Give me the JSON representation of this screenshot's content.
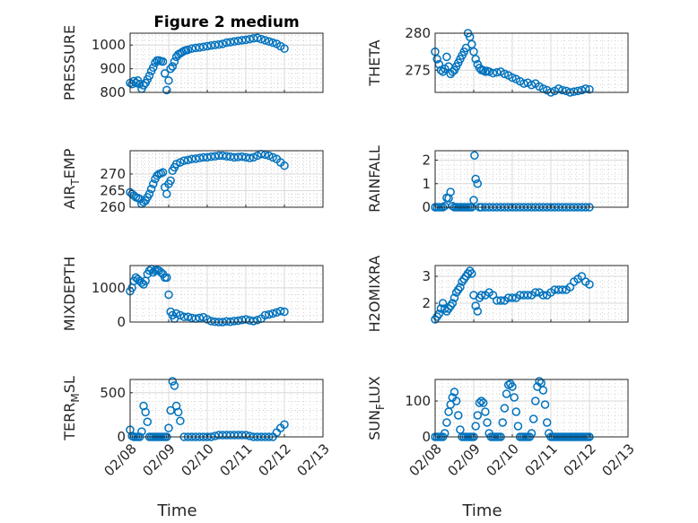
{
  "chart_data": [
    {
      "type": "scatter",
      "title": "Figure 2 medium",
      "ylabel": "PRESSURE",
      "xlim": [
        "02/08",
        "02/13"
      ],
      "ylim": [
        800,
        1050
      ],
      "yticks": [
        800,
        900,
        1000
      ],
      "ytick_labels": [
        "800",
        "900",
        "1000"
      ],
      "xtick_labels": [
        "02/08",
        "02/09",
        "02/10",
        "02/11",
        "02/12",
        "02/13"
      ],
      "x": [
        0,
        0.05,
        0.1,
        0.15,
        0.2,
        0.25,
        0.3,
        0.35,
        0.4,
        0.45,
        0.5,
        0.55,
        0.6,
        0.65,
        0.7,
        0.75,
        0.8,
        0.85,
        0.9,
        0.95,
        1.0,
        1.05,
        1.1,
        1.15,
        1.2,
        1.25,
        1.3,
        1.35,
        1.4,
        1.45,
        1.5,
        1.6,
        1.7,
        1.8,
        1.9,
        2.0,
        2.1,
        2.2,
        2.3,
        2.4,
        2.5,
        2.6,
        2.7,
        2.8,
        2.9,
        3.0,
        3.1,
        3.2,
        3.3,
        3.4,
        3.5,
        3.6,
        3.7,
        3.8,
        3.9,
        4.0
      ],
      "values": [
        840,
        835,
        848,
        840,
        850,
        835,
        815,
        830,
        840,
        855,
        870,
        890,
        905,
        925,
        935,
        935,
        932,
        930,
        880,
        810,
        850,
        900,
        910,
        930,
        950,
        960,
        965,
        970,
        975,
        978,
        980,
        985,
        988,
        990,
        992,
        995,
        998,
        1000,
        1002,
        1005,
        1010,
        1012,
        1015,
        1018,
        1020,
        1022,
        1025,
        1028,
        1030,
        1025,
        1020,
        1015,
        1010,
        1005,
        995,
        985
      ]
    },
    {
      "type": "scatter",
      "ylabel": "THETA",
      "xlim": [
        "02/08",
        "02/13"
      ],
      "ylim": [
        272,
        280
      ],
      "yticks": [
        275,
        280
      ],
      "ytick_labels": [
        "275",
        "280"
      ],
      "xtick_labels": [
        "02/08",
        "02/09",
        "02/10",
        "02/11",
        "02/12",
        "02/13"
      ],
      "x": [
        0,
        0.05,
        0.1,
        0.15,
        0.2,
        0.25,
        0.3,
        0.35,
        0.4,
        0.45,
        0.5,
        0.55,
        0.6,
        0.65,
        0.7,
        0.75,
        0.8,
        0.85,
        0.9,
        0.95,
        1.0,
        1.05,
        1.1,
        1.15,
        1.2,
        1.25,
        1.3,
        1.35,
        1.4,
        1.5,
        1.6,
        1.7,
        1.8,
        1.9,
        2.0,
        2.1,
        2.2,
        2.3,
        2.4,
        2.5,
        2.6,
        2.7,
        2.8,
        2.9,
        3.0,
        3.1,
        3.2,
        3.3,
        3.4,
        3.5,
        3.6,
        3.7,
        3.8,
        3.9,
        4.0
      ],
      "values": [
        277.5,
        276.5,
        275.8,
        275.0,
        274.8,
        275.2,
        276.8,
        275.5,
        274.5,
        274.8,
        275.0,
        275.5,
        276.0,
        276.5,
        277.0,
        277.5,
        278.0,
        280.0,
        279.5,
        278.5,
        277.5,
        276.5,
        275.8,
        275.3,
        275.0,
        275.0,
        274.8,
        274.9,
        274.8,
        274.6,
        274.7,
        274.8,
        274.5,
        274.3,
        274.0,
        273.8,
        273.5,
        273.2,
        273.3,
        273.0,
        273.2,
        272.8,
        272.5,
        272.3,
        272.0,
        272.2,
        272.5,
        272.3,
        272.2,
        272.0,
        272.1,
        272.2,
        272.3,
        272.5,
        272.4
      ]
    },
    {
      "type": "scatter",
      "ylabel": "AIR_TEMP",
      "xlim": [
        "02/08",
        "02/13"
      ],
      "ylim": [
        260,
        277
      ],
      "yticks": [
        260,
        265,
        270
      ],
      "ytick_labels": [
        "260",
        "265",
        "270"
      ],
      "xtick_labels": [
        "02/08",
        "02/09",
        "02/10",
        "02/11",
        "02/12",
        "02/13"
      ],
      "x": [
        0,
        0.05,
        0.1,
        0.15,
        0.2,
        0.25,
        0.3,
        0.35,
        0.4,
        0.45,
        0.5,
        0.55,
        0.6,
        0.65,
        0.7,
        0.75,
        0.8,
        0.85,
        0.9,
        0.95,
        1.0,
        1.05,
        1.1,
        1.15,
        1.2,
        1.3,
        1.4,
        1.5,
        1.6,
        1.7,
        1.8,
        1.9,
        2.0,
        2.1,
        2.2,
        2.3,
        2.4,
        2.5,
        2.6,
        2.7,
        2.8,
        2.9,
        3.0,
        3.1,
        3.2,
        3.3,
        3.4,
        3.5,
        3.6,
        3.7,
        3.8,
        3.9,
        4.0
      ],
      "values": [
        264.5,
        264.0,
        263.5,
        263.0,
        262.8,
        262.5,
        261.0,
        261.5,
        262.0,
        263.0,
        264.0,
        265.5,
        267.0,
        268.5,
        269.5,
        270.0,
        270.2,
        270.5,
        266.0,
        264.0,
        267.0,
        268.0,
        271.0,
        272.0,
        273.0,
        273.5,
        274.0,
        274.2,
        274.5,
        274.6,
        274.8,
        275.0,
        275.0,
        275.2,
        275.3,
        275.5,
        275.5,
        275.3,
        275.2,
        275.0,
        275.1,
        275.2,
        275.0,
        274.8,
        275.0,
        275.5,
        276.0,
        275.8,
        275.5,
        275.0,
        274.5,
        273.5,
        272.5
      ]
    },
    {
      "type": "scatter",
      "ylabel": "RAINFALL",
      "xlim": [
        "02/08",
        "02/13"
      ],
      "ylim": [
        0,
        2.4
      ],
      "yticks": [
        0,
        1,
        2
      ],
      "ytick_labels": [
        "0",
        "1",
        "2"
      ],
      "xtick_labels": [
        "02/08",
        "02/09",
        "02/10",
        "02/11",
        "02/12",
        "02/13"
      ],
      "x": [
        0,
        0.05,
        0.1,
        0.15,
        0.2,
        0.25,
        0.3,
        0.35,
        0.4,
        0.45,
        0.5,
        0.55,
        0.6,
        0.65,
        0.7,
        0.75,
        0.8,
        0.85,
        0.9,
        0.95,
        1.0,
        1.02,
        1.05,
        1.1,
        1.15,
        1.2,
        1.3,
        1.4,
        1.5,
        1.6,
        1.7,
        1.8,
        1.9,
        2.0,
        2.1,
        2.2,
        2.3,
        2.4,
        2.5,
        2.6,
        2.7,
        2.8,
        2.9,
        3.0,
        3.1,
        3.2,
        3.3,
        3.4,
        3.5,
        3.6,
        3.7,
        3.8,
        3.9,
        4.0
      ],
      "values": [
        0,
        0,
        0,
        0,
        0,
        0.05,
        0.4,
        0.38,
        0.65,
        0.05,
        0,
        0,
        0,
        0,
        0,
        0,
        0,
        0,
        0,
        0,
        0.3,
        2.2,
        1.2,
        1.0,
        0,
        0,
        0,
        0,
        0,
        0,
        0,
        0,
        0,
        0,
        0,
        0,
        0,
        0,
        0,
        0,
        0,
        0,
        0,
        0,
        0,
        0,
        0,
        0,
        0,
        0,
        0,
        0,
        0,
        0
      ]
    },
    {
      "type": "scatter",
      "ylabel": "MIXDEPTH",
      "xlim": [
        "02/08",
        "02/13"
      ],
      "ylim": [
        0,
        1650
      ],
      "yticks": [
        0,
        1000
      ],
      "ytick_labels": [
        "0",
        "1000"
      ],
      "xtick_labels": [
        "02/08",
        "02/09",
        "02/10",
        "02/11",
        "02/12",
        "02/13"
      ],
      "x": [
        0,
        0.05,
        0.1,
        0.15,
        0.2,
        0.25,
        0.3,
        0.35,
        0.4,
        0.45,
        0.5,
        0.55,
        0.6,
        0.65,
        0.7,
        0.75,
        0.8,
        0.85,
        0.9,
        0.95,
        1.0,
        1.05,
        1.1,
        1.15,
        1.2,
        1.3,
        1.4,
        1.5,
        1.6,
        1.7,
        1.8,
        1.9,
        2.0,
        2.1,
        2.2,
        2.3,
        2.4,
        2.5,
        2.6,
        2.7,
        2.8,
        2.9,
        3.0,
        3.1,
        3.2,
        3.3,
        3.4,
        3.5,
        3.6,
        3.7,
        3.8,
        3.9,
        4.0
      ],
      "values": [
        900,
        1000,
        1200,
        1300,
        1250,
        1200,
        1150,
        1100,
        1200,
        1400,
        1500,
        1550,
        1450,
        1500,
        1520,
        1500,
        1450,
        1400,
        1300,
        1300,
        800,
        300,
        200,
        100,
        250,
        200,
        150,
        150,
        120,
        100,
        120,
        140,
        80,
        30,
        10,
        0,
        0,
        20,
        10,
        30,
        40,
        60,
        80,
        50,
        30,
        60,
        100,
        200,
        220,
        250,
        280,
        320,
        300
      ]
    },
    {
      "type": "scatter",
      "ylabel": "H2OMIXRA",
      "xlim": [
        "02/08",
        "02/13"
      ],
      "ylim": [
        1.3,
        3.4
      ],
      "yticks": [
        2,
        3
      ],
      "ytick_labels": [
        "2",
        "3"
      ],
      "xtick_labels": [
        "02/08",
        "02/09",
        "02/10",
        "02/11",
        "02/12",
        "02/13"
      ],
      "x": [
        0,
        0.05,
        0.1,
        0.15,
        0.2,
        0.25,
        0.3,
        0.35,
        0.4,
        0.45,
        0.5,
        0.55,
        0.6,
        0.65,
        0.7,
        0.75,
        0.8,
        0.85,
        0.9,
        0.95,
        1.0,
        1.05,
        1.1,
        1.15,
        1.2,
        1.3,
        1.4,
        1.5,
        1.6,
        1.7,
        1.8,
        1.9,
        2.0,
        2.1,
        2.2,
        2.3,
        2.4,
        2.5,
        2.6,
        2.7,
        2.8,
        2.9,
        3.0,
        3.1,
        3.2,
        3.3,
        3.4,
        3.5,
        3.6,
        3.7,
        3.8,
        3.9,
        4.0
      ],
      "values": [
        1.4,
        1.5,
        1.6,
        1.8,
        2.0,
        1.8,
        1.7,
        1.8,
        1.9,
        2.0,
        2.2,
        2.4,
        2.5,
        2.6,
        2.8,
        2.9,
        3.0,
        3.1,
        3.2,
        3.1,
        2.3,
        1.9,
        1.7,
        2.2,
        2.3,
        2.3,
        2.4,
        2.3,
        2.1,
        2.1,
        2.1,
        2.2,
        2.2,
        2.2,
        2.3,
        2.3,
        2.3,
        2.3,
        2.4,
        2.4,
        2.3,
        2.3,
        2.4,
        2.5,
        2.5,
        2.5,
        2.5,
        2.6,
        2.8,
        2.9,
        3.0,
        2.8,
        2.7
      ]
    },
    {
      "type": "scatter",
      "ylabel": "TERR_MSL",
      "xlim": [
        "02/08",
        "02/13"
      ],
      "ylim": [
        0,
        650
      ],
      "yticks": [
        0,
        500
      ],
      "ytick_labels": [
        "0",
        "500"
      ],
      "xtick_labels": [
        "02/08",
        "02/09",
        "02/10",
        "02/11",
        "02/12",
        "02/13"
      ],
      "x": [
        0,
        0.05,
        0.1,
        0.15,
        0.2,
        0.25,
        0.3,
        0.35,
        0.4,
        0.45,
        0.5,
        0.55,
        0.6,
        0.65,
        0.7,
        0.75,
        0.8,
        0.85,
        0.9,
        0.95,
        1.0,
        1.05,
        1.1,
        1.15,
        1.2,
        1.25,
        1.3,
        1.4,
        1.5,
        1.6,
        1.7,
        1.8,
        1.9,
        2.0,
        2.1,
        2.2,
        2.3,
        2.4,
        2.5,
        2.6,
        2.7,
        2.8,
        2.9,
        3.0,
        3.1,
        3.2,
        3.3,
        3.4,
        3.5,
        3.6,
        3.7,
        3.8,
        3.9,
        4.0
      ],
      "values": [
        80,
        10,
        0,
        0,
        0,
        0,
        60,
        350,
        280,
        170,
        0,
        0,
        0,
        0,
        0,
        0,
        0,
        0,
        0,
        0,
        100,
        300,
        630,
        580,
        350,
        280,
        180,
        0,
        0,
        0,
        0,
        0,
        0,
        0,
        0,
        10,
        20,
        20,
        20,
        20,
        20,
        20,
        20,
        20,
        10,
        0,
        0,
        0,
        0,
        0,
        0,
        50,
        100,
        140
      ]
    },
    {
      "type": "scatter",
      "ylabel": "SUN_FLUX",
      "xlim": [
        "02/08",
        "02/13"
      ],
      "ylim": [
        0,
        160
      ],
      "yticks": [
        0,
        100
      ],
      "ytick_labels": [
        "0",
        "100"
      ],
      "xtick_labels": [
        "02/08",
        "02/09",
        "02/10",
        "02/11",
        "02/12",
        "02/13"
      ],
      "x": [
        0,
        0.05,
        0.1,
        0.15,
        0.2,
        0.25,
        0.3,
        0.35,
        0.4,
        0.45,
        0.5,
        0.55,
        0.6,
        0.65,
        0.7,
        0.75,
        0.8,
        0.85,
        0.9,
        0.95,
        1.0,
        1.05,
        1.1,
        1.15,
        1.2,
        1.25,
        1.3,
        1.35,
        1.4,
        1.45,
        1.5,
        1.55,
        1.6,
        1.65,
        1.7,
        1.75,
        1.8,
        1.85,
        1.9,
        1.95,
        2.0,
        2.05,
        2.1,
        2.15,
        2.2,
        2.25,
        2.3,
        2.35,
        2.4,
        2.45,
        2.5,
        2.55,
        2.6,
        2.65,
        2.7,
        2.75,
        2.8,
        2.85,
        2.9,
        2.95,
        3.0,
        3.05,
        3.1,
        3.15,
        3.2,
        3.25,
        3.3,
        3.35,
        3.4,
        3.45,
        3.5,
        3.55,
        3.6,
        3.65,
        3.7,
        3.75,
        3.8,
        3.85,
        3.9,
        3.95,
        4.0
      ],
      "values": [
        0,
        0,
        0,
        0,
        0,
        10,
        40,
        70,
        90,
        110,
        125,
        100,
        60,
        20,
        0,
        0,
        0,
        0,
        0,
        0,
        0,
        30,
        60,
        95,
        100,
        95,
        70,
        40,
        10,
        0,
        0,
        0,
        0,
        0,
        0,
        40,
        80,
        120,
        145,
        148,
        140,
        110,
        70,
        30,
        0,
        0,
        0,
        0,
        0,
        0,
        10,
        50,
        100,
        140,
        155,
        150,
        130,
        90,
        40,
        10,
        0,
        0,
        0,
        0,
        0,
        0,
        0,
        0,
        0,
        0,
        0,
        0,
        0,
        0,
        0,
        0,
        0,
        0,
        0,
        0,
        0
      ]
    }
  ],
  "xlabel": "Time"
}
